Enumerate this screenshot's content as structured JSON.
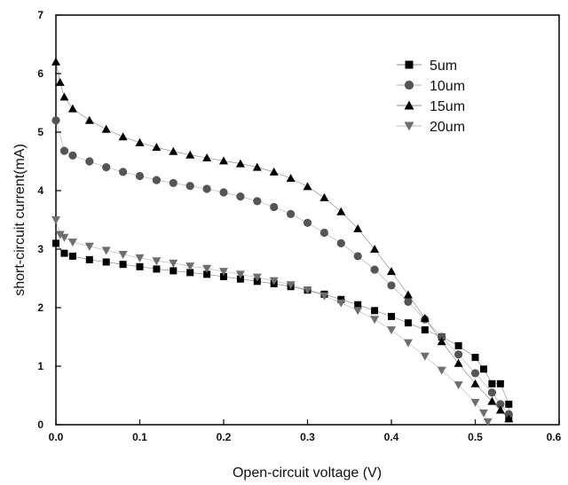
{
  "chart_data": {
    "type": "scatter",
    "xlabel": "Open-circuit voltage (V)",
    "ylabel": "short-circuit current(mA)",
    "xlim": [
      0,
      0.6
    ],
    "ylim": [
      0,
      7
    ],
    "xticks": [
      "0.0",
      "0.1",
      "0.2",
      "0.3",
      "0.4",
      "0.5",
      "0.6"
    ],
    "yticks": [
      "0",
      "1",
      "2",
      "3",
      "4",
      "5",
      "6",
      "7"
    ],
    "legend_position": "top-right",
    "series": [
      {
        "name": "5um",
        "marker": "square",
        "color": "#000000",
        "points": [
          [
            0.0,
            3.1
          ],
          [
            0.01,
            2.93
          ],
          [
            0.02,
            2.88
          ],
          [
            0.04,
            2.82
          ],
          [
            0.06,
            2.78
          ],
          [
            0.08,
            2.74
          ],
          [
            0.1,
            2.7
          ],
          [
            0.12,
            2.66
          ],
          [
            0.14,
            2.63
          ],
          [
            0.16,
            2.6
          ],
          [
            0.18,
            2.57
          ],
          [
            0.2,
            2.53
          ],
          [
            0.22,
            2.49
          ],
          [
            0.24,
            2.45
          ],
          [
            0.26,
            2.41
          ],
          [
            0.28,
            2.36
          ],
          [
            0.3,
            2.3
          ],
          [
            0.32,
            2.23
          ],
          [
            0.34,
            2.14
          ],
          [
            0.36,
            2.05
          ],
          [
            0.38,
            1.95
          ],
          [
            0.4,
            1.85
          ],
          [
            0.42,
            1.74
          ],
          [
            0.44,
            1.62
          ],
          [
            0.46,
            1.5
          ],
          [
            0.48,
            1.35
          ],
          [
            0.5,
            1.15
          ],
          [
            0.51,
            0.95
          ],
          [
            0.52,
            0.7
          ],
          [
            0.53,
            0.7
          ],
          [
            0.54,
            0.35
          ],
          [
            0.54,
            0.12
          ]
        ]
      },
      {
        "name": "10um",
        "marker": "circle",
        "color": "#555555",
        "points": [
          [
            0.0,
            5.2
          ],
          [
            0.01,
            4.68
          ],
          [
            0.02,
            4.6
          ],
          [
            0.04,
            4.5
          ],
          [
            0.06,
            4.4
          ],
          [
            0.08,
            4.32
          ],
          [
            0.1,
            4.25
          ],
          [
            0.12,
            4.18
          ],
          [
            0.14,
            4.13
          ],
          [
            0.16,
            4.08
          ],
          [
            0.18,
            4.03
          ],
          [
            0.2,
            3.97
          ],
          [
            0.22,
            3.9
          ],
          [
            0.24,
            3.82
          ],
          [
            0.26,
            3.72
          ],
          [
            0.28,
            3.6
          ],
          [
            0.3,
            3.45
          ],
          [
            0.32,
            3.28
          ],
          [
            0.34,
            3.1
          ],
          [
            0.36,
            2.88
          ],
          [
            0.38,
            2.65
          ],
          [
            0.4,
            2.38
          ],
          [
            0.42,
            2.1
          ],
          [
            0.44,
            1.8
          ],
          [
            0.46,
            1.5
          ],
          [
            0.48,
            1.2
          ],
          [
            0.5,
            0.88
          ],
          [
            0.52,
            0.55
          ],
          [
            0.53,
            0.35
          ],
          [
            0.54,
            0.18
          ]
        ]
      },
      {
        "name": "15um",
        "marker": "triangle-up",
        "color": "#000000",
        "points": [
          [
            0.0,
            6.2
          ],
          [
            0.005,
            5.85
          ],
          [
            0.01,
            5.6
          ],
          [
            0.02,
            5.4
          ],
          [
            0.04,
            5.2
          ],
          [
            0.06,
            5.05
          ],
          [
            0.08,
            4.92
          ],
          [
            0.1,
            4.82
          ],
          [
            0.12,
            4.74
          ],
          [
            0.14,
            4.67
          ],
          [
            0.16,
            4.61
          ],
          [
            0.18,
            4.56
          ],
          [
            0.2,
            4.51
          ],
          [
            0.22,
            4.46
          ],
          [
            0.24,
            4.4
          ],
          [
            0.26,
            4.32
          ],
          [
            0.28,
            4.21
          ],
          [
            0.3,
            4.07
          ],
          [
            0.32,
            3.88
          ],
          [
            0.34,
            3.64
          ],
          [
            0.36,
            3.35
          ],
          [
            0.38,
            3.0
          ],
          [
            0.4,
            2.62
          ],
          [
            0.42,
            2.22
          ],
          [
            0.44,
            1.82
          ],
          [
            0.46,
            1.42
          ],
          [
            0.48,
            1.05
          ],
          [
            0.5,
            0.7
          ],
          [
            0.52,
            0.4
          ],
          [
            0.53,
            0.25
          ],
          [
            0.54,
            0.1
          ]
        ]
      },
      {
        "name": "20um",
        "marker": "triangle-down",
        "color": "#6e6e6e",
        "points": [
          [
            0.0,
            3.5
          ],
          [
            0.005,
            3.25
          ],
          [
            0.01,
            3.2
          ],
          [
            0.02,
            3.12
          ],
          [
            0.04,
            3.05
          ],
          [
            0.06,
            2.98
          ],
          [
            0.08,
            2.91
          ],
          [
            0.1,
            2.85
          ],
          [
            0.12,
            2.8
          ],
          [
            0.14,
            2.76
          ],
          [
            0.16,
            2.71
          ],
          [
            0.18,
            2.67
          ],
          [
            0.2,
            2.62
          ],
          [
            0.22,
            2.57
          ],
          [
            0.24,
            2.52
          ],
          [
            0.26,
            2.46
          ],
          [
            0.28,
            2.39
          ],
          [
            0.3,
            2.3
          ],
          [
            0.32,
            2.2
          ],
          [
            0.34,
            2.08
          ],
          [
            0.36,
            1.95
          ],
          [
            0.38,
            1.8
          ],
          [
            0.4,
            1.62
          ],
          [
            0.42,
            1.4
          ],
          [
            0.44,
            1.17
          ],
          [
            0.46,
            0.93
          ],
          [
            0.48,
            0.68
          ],
          [
            0.5,
            0.38
          ],
          [
            0.51,
            0.2
          ],
          [
            0.515,
            0.05
          ]
        ]
      }
    ]
  }
}
